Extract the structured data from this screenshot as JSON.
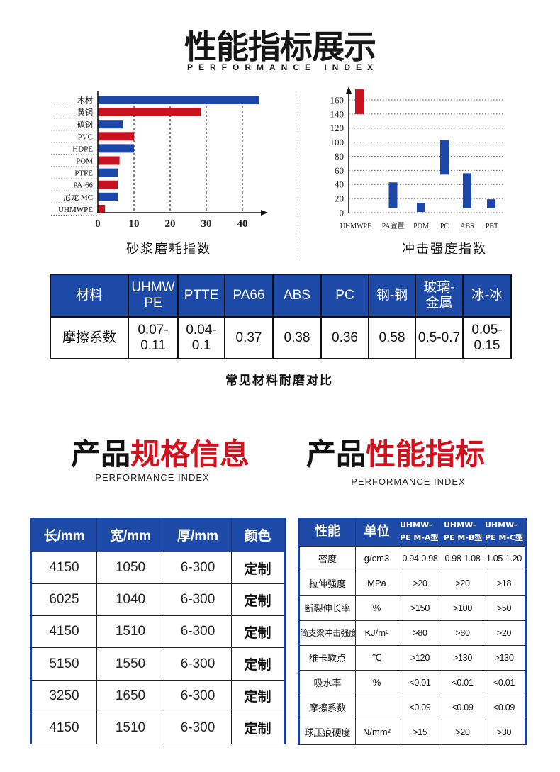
{
  "header": {
    "title": "性能指标展示",
    "subtitle": "PERFORMANCE INDEX"
  },
  "chart_data": [
    {
      "type": "bar",
      "orientation": "horizontal",
      "title": "砂浆磨耗指数",
      "categories": [
        "木材",
        "黄铜",
        "碳钢",
        "PVC",
        "HDPE",
        "POM",
        "PTFE",
        "PA-66",
        "尼龙 MC",
        "UHMWPE"
      ],
      "values": [
        44.5,
        28.5,
        7,
        10,
        10,
        6,
        5.5,
        5.5,
        5.5,
        2
      ],
      "colors": [
        "#1c47a9",
        "#c9121f",
        "#1c47a9",
        "#c9121f",
        "#1c47a9",
        "#c9121f",
        "#1c47a9",
        "#c9121f",
        "#1c47a9",
        "#c9121f"
      ],
      "xticks": [
        0,
        10,
        20,
        30,
        40
      ],
      "xlim": [
        0,
        45
      ],
      "xlabel": "",
      "ylabel": "",
      "grid": "vertical dashed",
      "legend": "none"
    },
    {
      "type": "bar",
      "orientation": "vertical",
      "bar_style": "floating range",
      "title": "冲击强度指数",
      "categories": [
        "UHMWPE",
        "PA宜置",
        "POM",
        "PC",
        "ABS",
        "PBT"
      ],
      "ranges": [
        [
          140,
          175
        ],
        [
          7,
          43
        ],
        [
          1,
          14
        ],
        [
          54,
          103
        ],
        [
          6,
          56
        ],
        [
          6,
          19
        ]
      ],
      "colors": [
        "#c9121f",
        "#1c47a9",
        "#1c47a9",
        "#1c47a9",
        "#1c47a9",
        "#1c47a9"
      ],
      "yticks": [
        0,
        20,
        40,
        60,
        80,
        100,
        120,
        140,
        160
      ],
      "ylim": [
        0,
        175
      ],
      "xlabel": "",
      "ylabel": "",
      "grid": "horizontal dotted",
      "legend": "none"
    }
  ],
  "wear_table": {
    "header": [
      "材料",
      "UHMW\nPE",
      "PTTE",
      "PA66",
      "ABS",
      "PC",
      "钢-钢",
      "玻璃-\n金属",
      "冰-冰"
    ],
    "row": [
      "摩擦系数",
      "0.07-\n0.11",
      "0.04-\n0.1",
      "0.37",
      "0.38",
      "0.36",
      "0.58",
      "0.5-0.7",
      "0.05-\n0.15"
    ],
    "caption": "常见材料耐磨对比"
  },
  "spec_section": {
    "title_black": "产品",
    "title_red": "规格信息",
    "subtitle": "PERFORMANCE INDEX"
  },
  "perf_section": {
    "title_black": "产品",
    "title_red": "性能指标",
    "subtitle": "PERFORMANCE INDEX"
  },
  "spec_table": {
    "headers": [
      "长/mm",
      "宽/mm",
      "厚/mm",
      "颜色"
    ],
    "rows": [
      [
        "4150",
        "1050",
        "6-300",
        "定制"
      ],
      [
        "6025",
        "1040",
        "6-300",
        "定制"
      ],
      [
        "4150",
        "1510",
        "6-300",
        "定制"
      ],
      [
        "5150",
        "1550",
        "6-300",
        "定制"
      ],
      [
        "3250",
        "1650",
        "6-300",
        "定制"
      ],
      [
        "4150",
        "1510",
        "6-300",
        "定制"
      ]
    ]
  },
  "perf_table": {
    "headers": [
      "性能",
      "单位",
      "UHMW-\nPE M-A型",
      "UHMW-\nPE M-B型",
      "UHMW-\nPE M-C型"
    ],
    "rows": [
      [
        "密度",
        "g/cm3",
        "0.94-0.98",
        "0.98-1.08",
        "1.05-1.20"
      ],
      [
        "拉伸强度",
        "MPa",
        ">20",
        ">20",
        ">18"
      ],
      [
        "断裂伸长率",
        "%",
        ">150",
        ">100",
        ">50"
      ],
      [
        "简支梁冲击强度",
        "KJ/m²",
        ">80",
        ">80",
        ">20"
      ],
      [
        "维卡软点",
        "℃",
        ">120",
        ">130",
        ">130"
      ],
      [
        "吸水率",
        "%",
        "<0.01",
        "<0.01",
        "<0.01"
      ],
      [
        "摩擦系数",
        "",
        "<0.09",
        "<0.09",
        "<0.09"
      ],
      [
        "球压痕硬度",
        "N/mm²",
        ">15",
        ">20",
        ">30"
      ]
    ]
  },
  "colors": {
    "brand_blue": "#1d4aa7",
    "accent_red": "#d1121e",
    "text": "#111111"
  }
}
